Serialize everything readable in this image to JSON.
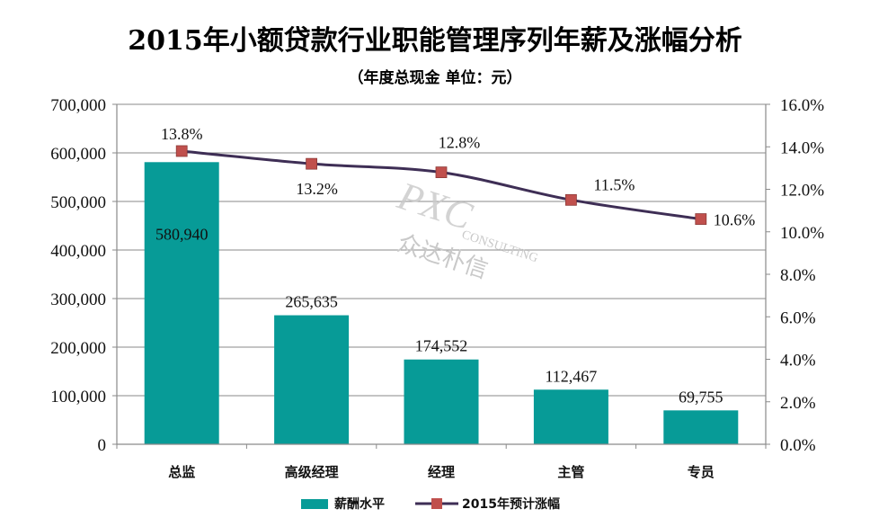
{
  "chart_data": {
    "type": "bar+line",
    "title": "2015年小额贷款行业职能管理序列年薪及涨幅分析",
    "subtitle": "（年度总现金 单位：元）",
    "categories": [
      "总监",
      "高级经理",
      "经理",
      "主管",
      "专员"
    ],
    "series": [
      {
        "name": "薪酬水平",
        "type": "bar",
        "axis": "left",
        "values": [
          580940,
          265635,
          174552,
          112467,
          69755
        ],
        "labels": [
          "580,940",
          "265,635",
          "174,552",
          "112,467",
          "69,755"
        ],
        "color": "#079B97"
      },
      {
        "name": "2015年预计涨幅",
        "type": "line",
        "axis": "right",
        "values": [
          13.8,
          13.2,
          12.8,
          11.5,
          10.6
        ],
        "labels": [
          "13.8%",
          "13.2%",
          "12.8%",
          "11.5%",
          "10.6%"
        ],
        "color": "#3E2E55",
        "marker_color": "#C0504D"
      }
    ],
    "y_left": {
      "range": [
        0,
        700000
      ],
      "ticks": [
        0,
        100000,
        200000,
        300000,
        400000,
        500000,
        600000,
        700000
      ],
      "tick_labels": [
        "0",
        "100,000",
        "200,000",
        "300,000",
        "400,000",
        "500,000",
        "600,000",
        "700,000"
      ]
    },
    "y_right": {
      "range": [
        0,
        16
      ],
      "ticks": [
        0,
        2,
        4,
        6,
        8,
        10,
        12,
        14,
        16
      ],
      "tick_labels": [
        "0.0%",
        "2.0%",
        "4.0%",
        "6.0%",
        "8.0%",
        "10.0%",
        "12.0%",
        "14.0%",
        "16.0%"
      ]
    },
    "grid": true,
    "legend": {
      "position": "bottom",
      "items": [
        "薪酬水平",
        "2015年预计涨幅"
      ]
    },
    "watermark": {
      "line1": "PXC",
      "line2": "CONSULTING",
      "line3": "众达朴信"
    }
  }
}
